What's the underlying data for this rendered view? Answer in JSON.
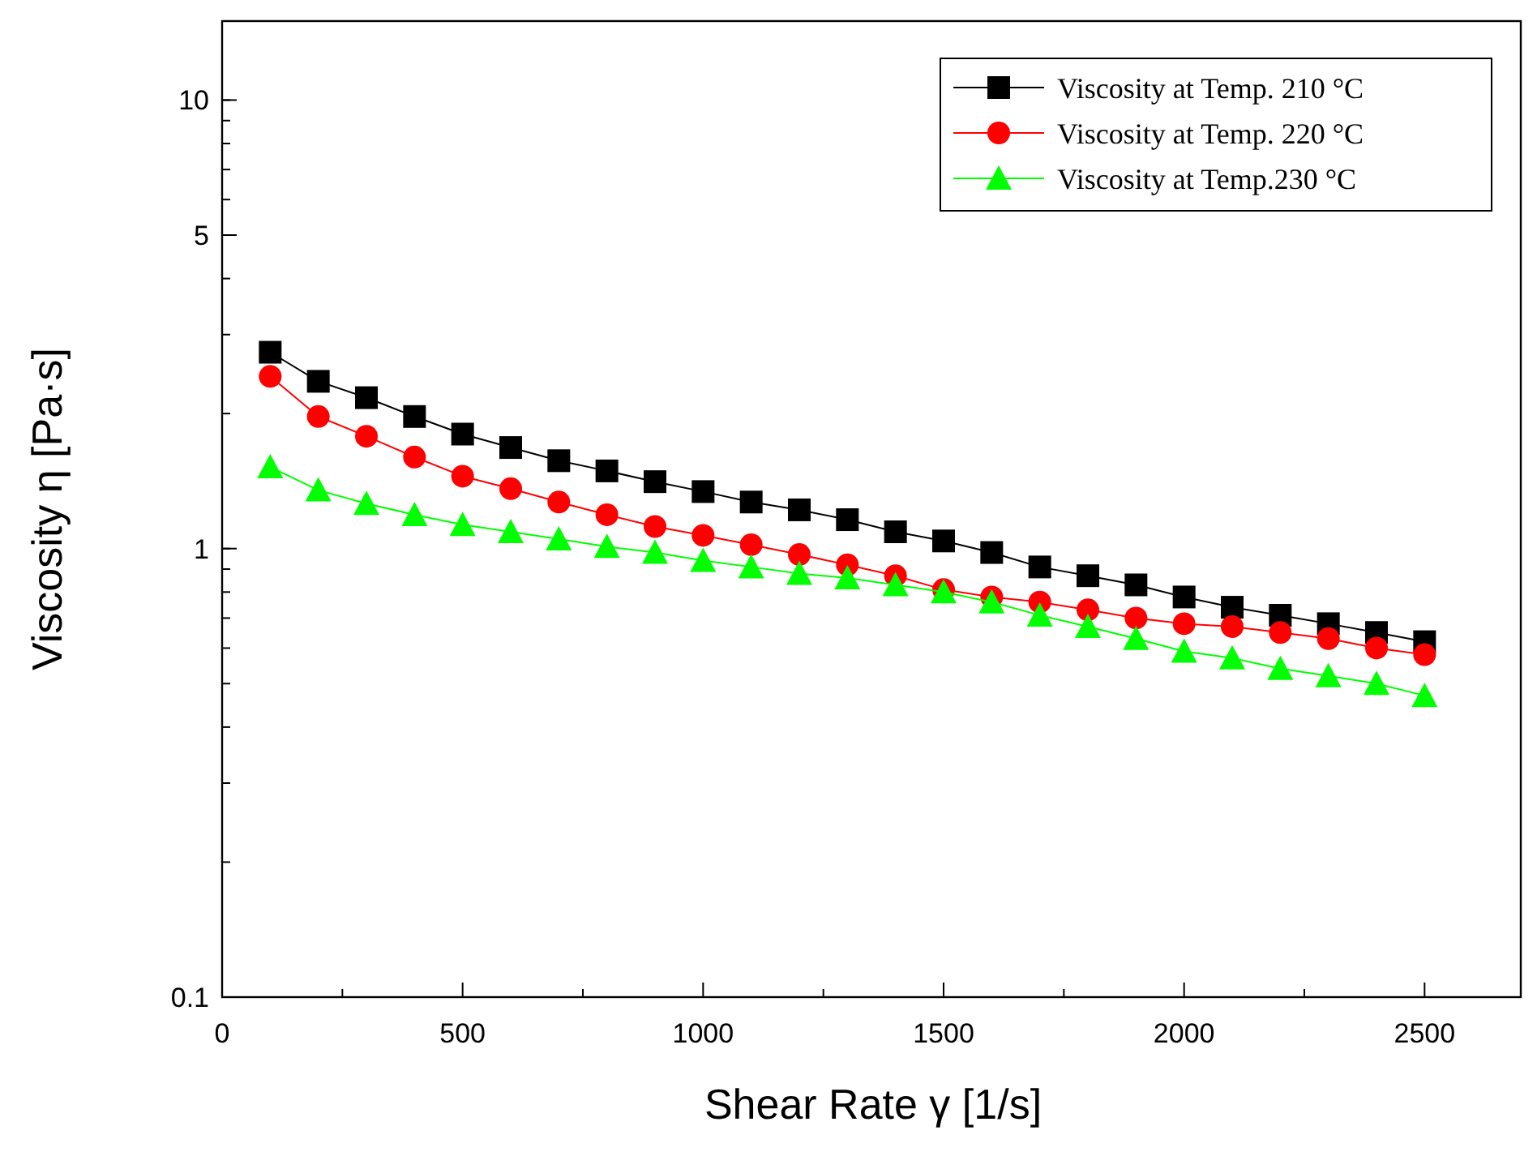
{
  "chart_data": {
    "type": "line",
    "xlabel": "Shear Rate γ  [1/s]",
    "ylabel": "Viscosity  η  [Pa·s]",
    "x": [
      100,
      200,
      300,
      400,
      500,
      600,
      700,
      800,
      900,
      1000,
      1100,
      1200,
      1300,
      1400,
      1500,
      1600,
      1700,
      1800,
      1900,
      2000,
      2100,
      2200,
      2300,
      2400,
      2500
    ],
    "series": [
      {
        "name": "Viscosity at Temp. 210 °C",
        "color": "#000000",
        "marker": "square",
        "values": [
          2.74,
          2.36,
          2.17,
          1.97,
          1.8,
          1.68,
          1.57,
          1.49,
          1.41,
          1.34,
          1.27,
          1.22,
          1.16,
          1.09,
          1.04,
          0.98,
          0.91,
          0.87,
          0.83,
          0.78,
          0.74,
          0.71,
          0.68,
          0.65,
          0.62
        ]
      },
      {
        "name": "Viscosity at Temp. 220 °C",
        "color": "#ff0000",
        "marker": "circle",
        "values": [
          2.42,
          1.97,
          1.78,
          1.6,
          1.45,
          1.36,
          1.27,
          1.19,
          1.12,
          1.07,
          1.02,
          0.97,
          0.92,
          0.87,
          0.81,
          0.78,
          0.76,
          0.73,
          0.7,
          0.68,
          0.67,
          0.65,
          0.63,
          0.6,
          0.58
        ]
      },
      {
        "name": "Viscosity  at Temp.230 °C",
        "color": "#00ff00",
        "marker": "triangle",
        "values": [
          1.52,
          1.35,
          1.26,
          1.19,
          1.13,
          1.09,
          1.05,
          1.01,
          0.98,
          0.94,
          0.91,
          0.88,
          0.86,
          0.83,
          0.8,
          0.76,
          0.71,
          0.67,
          0.63,
          0.59,
          0.57,
          0.54,
          0.52,
          0.5,
          0.47
        ]
      }
    ],
    "xlim": [
      0,
      2700
    ],
    "xticks": [
      0,
      500,
      1000,
      1500,
      2000,
      2500
    ],
    "ylim": [
      0.1,
      15
    ],
    "yticks": [
      0.1,
      1,
      5,
      10
    ],
    "log": true,
    "legend": "top right",
    "grid": false,
    "line_style": "solid"
  }
}
